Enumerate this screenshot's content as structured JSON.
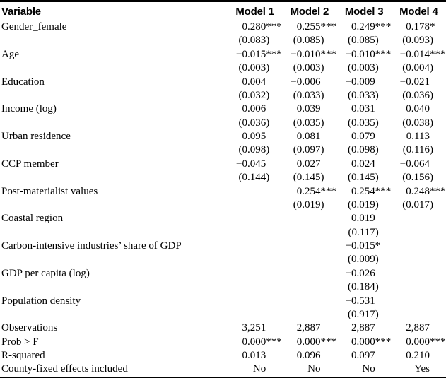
{
  "table": {
    "columns": [
      "Variable",
      "Model 1",
      "Model 2",
      "Model 3",
      "Model 4"
    ],
    "rows": [
      {
        "label": "Gender_female",
        "coefficients": [
          "0.280***",
          "0.255***",
          "0.249***",
          "0.178*"
        ],
        "std_errors": [
          "(0.083)",
          "(0.085)",
          "(0.085)",
          "(0.093)"
        ]
      },
      {
        "label": "Age",
        "coefficients": [
          "−0.015***",
          "−0.010***",
          "−0.010***",
          "−0.014***"
        ],
        "std_errors": [
          "(0.003)",
          "(0.003)",
          "(0.003)",
          "(0.004)"
        ]
      },
      {
        "label": "Education",
        "coefficients": [
          "0.004",
          "−0.006",
          "−0.009",
          "−0.021"
        ],
        "std_errors": [
          "(0.032)",
          "(0.033)",
          "(0.033)",
          "(0.036)"
        ]
      },
      {
        "label": "Income (log)",
        "coefficients": [
          "0.006",
          "0.039",
          "0.031",
          "0.040"
        ],
        "std_errors": [
          "(0.036)",
          "(0.035)",
          "(0.035)",
          "(0.038)"
        ]
      },
      {
        "label": "Urban residence",
        "coefficients": [
          "0.095",
          "0.081",
          "0.079",
          "0.113"
        ],
        "std_errors": [
          "(0.098)",
          "(0.097)",
          "(0.098)",
          "(0.116)"
        ]
      },
      {
        "label": "CCP member",
        "coefficients": [
          "−0.045",
          "0.027",
          "0.024",
          "−0.064"
        ],
        "std_errors": [
          "(0.144)",
          "(0.145)",
          "(0.145)",
          "(0.156)"
        ]
      },
      {
        "label": "Post-materialist values",
        "coefficients": [
          "",
          "0.254***",
          "0.254***",
          "0.248***"
        ],
        "std_errors": [
          "",
          "(0.019)",
          "(0.019)",
          "(0.017)"
        ]
      },
      {
        "label": "Coastal region",
        "coefficients": [
          "",
          "",
          "0.019",
          ""
        ],
        "std_errors": [
          "",
          "",
          "(0.117)",
          ""
        ]
      },
      {
        "label": "Carbon-intensive industries’ share of GDP",
        "coefficients": [
          "",
          "",
          "−0.015*",
          ""
        ],
        "std_errors": [
          "",
          "",
          "(0.009)",
          ""
        ]
      },
      {
        "label": "GDP per capita (log)",
        "coefficients": [
          "",
          "",
          "−0.026",
          ""
        ],
        "std_errors": [
          "",
          "",
          "(0.184)",
          ""
        ]
      },
      {
        "label": "Population density",
        "coefficients": [
          "",
          "",
          "−0.531",
          ""
        ],
        "std_errors": [
          "",
          "",
          "(0.917)",
          ""
        ]
      }
    ],
    "stats": [
      {
        "label": "Observations",
        "values": [
          "3,251",
          "2,887",
          "2,887",
          "2,887"
        ]
      },
      {
        "label": "Prob > F",
        "values": [
          "0.000***",
          "0.000***",
          "0.000***",
          "0.000***"
        ]
      },
      {
        "label": "R-squared",
        "values": [
          "0.013",
          "0.096",
          "0.097",
          "0.210"
        ]
      },
      {
        "label": "County-fixed effects included",
        "values": [
          "No",
          "No",
          "No",
          "Yes"
        ]
      }
    ]
  },
  "colors": {
    "text": "#000000",
    "background": "#ffffff",
    "rule": "#000000"
  }
}
